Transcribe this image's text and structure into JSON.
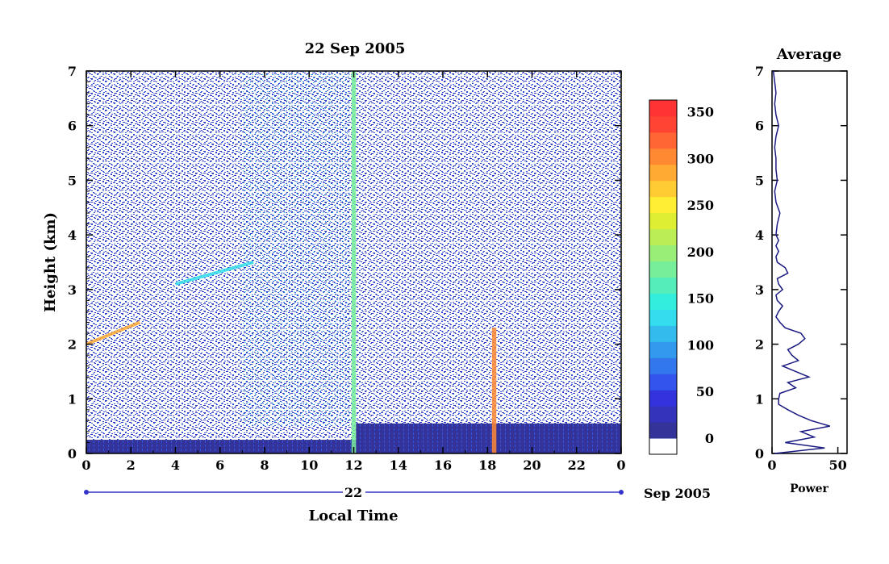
{
  "chart_data": [
    {
      "type": "heatmap",
      "title": "22 Sep 2005",
      "xlabel": "Local Time",
      "ylabel": "Height (km)",
      "x_ticks": [
        "0",
        "2",
        "4",
        "6",
        "8",
        "10",
        "12",
        "14",
        "16",
        "18",
        "20",
        "22",
        "0"
      ],
      "xlim": [
        0,
        24
      ],
      "y_ticks": [
        "0",
        "1",
        "2",
        "3",
        "4",
        "5",
        "6",
        "7"
      ],
      "ylim": [
        0,
        7
      ],
      "date_bar": {
        "day_label": "22",
        "month_label": "Sep 2005"
      },
      "colorbar": {
        "tick_labels": [
          "0",
          "50",
          "100",
          "150",
          "200",
          "250",
          "300",
          "350"
        ],
        "range": [
          0,
          380
        ],
        "colors": [
          "#ffffff",
          "#33339a",
          "#3333bb",
          "#3333dd",
          "#3355ee",
          "#3377ee",
          "#3399ee",
          "#33bbee",
          "#33ddee",
          "#33eedd",
          "#55eebb",
          "#77ee99",
          "#99ee77",
          "#bbee55",
          "#ddee33",
          "#ffee33",
          "#ffcc33",
          "#ffaa33",
          "#ff8833",
          "#ff6633",
          "#ff4433",
          "#ff3333"
        ]
      },
      "layers": [
        {
          "name": "surface band",
          "x": [
            0,
            12.1
          ],
          "height_top": 0.25
        },
        {
          "name": "surface band",
          "x": [
            12.1,
            24
          ],
          "height_top": 0.55
        }
      ],
      "features": [
        {
          "x": [
            0,
            2.4
          ],
          "height": [
            2.0,
            2.4
          ],
          "level": 300
        },
        {
          "x": [
            4,
            7.5
          ],
          "height": [
            3.1,
            3.5
          ],
          "level": 150
        },
        {
          "x": [
            11.9,
            12.1
          ],
          "height": [
            0,
            7
          ],
          "level": 200
        },
        {
          "x": [
            18.2,
            18.4
          ],
          "height": [
            0,
            2.3
          ],
          "level": 330
        }
      ]
    },
    {
      "type": "line",
      "title": "Average",
      "xlabel": "Power",
      "ylabel": "",
      "x_ticks": [
        "0",
        "50"
      ],
      "xlim": [
        0,
        57
      ],
      "y_ticks": [
        "0",
        "1",
        "2",
        "3",
        "4",
        "5",
        "6",
        "7"
      ],
      "ylim": [
        0,
        7
      ],
      "series": [
        {
          "height": [
            0,
            0.1,
            0.2,
            0.3,
            0.4,
            0.5,
            0.6,
            0.7,
            0.8,
            0.9,
            1.0,
            1.1,
            1.2,
            1.3,
            1.4,
            1.5,
            1.6,
            1.7,
            1.8,
            1.9,
            2.0,
            2.1,
            2.2,
            2.3,
            2.4,
            2.5,
            2.6,
            2.7,
            2.8,
            2.9,
            3.0,
            3.1,
            3.2,
            3.3,
            3.4,
            3.5,
            3.6,
            3.7,
            3.8,
            3.9,
            4.0,
            4.2,
            4.4,
            4.6,
            4.8,
            5.0,
            5.2,
            5.4,
            5.6,
            5.8,
            6.0,
            6.2,
            6.4,
            6.6,
            6.8,
            7.0
          ],
          "power": [
            2,
            40,
            10,
            32,
            22,
            44,
            30,
            20,
            12,
            5,
            5,
            6,
            18,
            12,
            28,
            18,
            8,
            20,
            15,
            12,
            20,
            25,
            22,
            10,
            6,
            3,
            5,
            8,
            4,
            3,
            8,
            5,
            4,
            12,
            10,
            4,
            3,
            5,
            3,
            5,
            3,
            4,
            6,
            3,
            2,
            4,
            3,
            3,
            2,
            3,
            5,
            3,
            2,
            3,
            2,
            1
          ]
        }
      ]
    }
  ]
}
